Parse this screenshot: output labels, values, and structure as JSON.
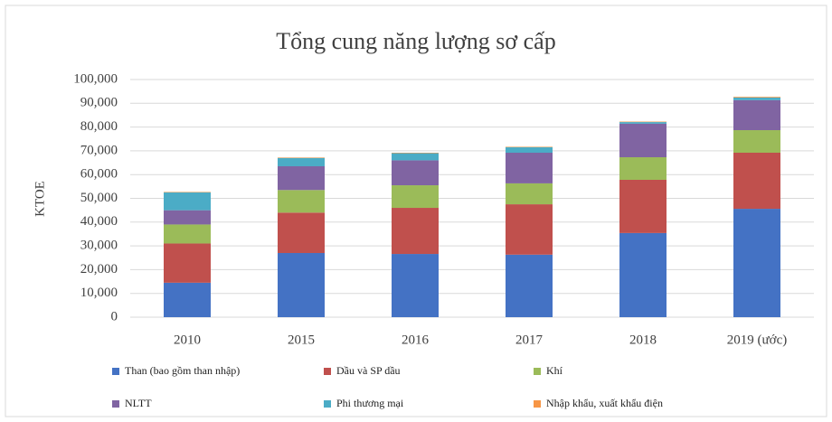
{
  "chart_data": {
    "type": "stacked-bar",
    "title": "Tổng cung năng lượng sơ cấp",
    "y_label": "KTOE",
    "categories": [
      "2010",
      "2015",
      "2016",
      "2017",
      "2018",
      "2019 (ước)"
    ],
    "series": [
      {
        "name": "Than (bao gồm  than nhập)",
        "color": "#4472c4",
        "values": [
          14500,
          27000,
          26600,
          26300,
          35400,
          45600
        ]
      },
      {
        "name": "Dầu và SP dầu",
        "color": "#c0504d",
        "values": [
          16500,
          17000,
          19400,
          21200,
          22400,
          23600
        ]
      },
      {
        "name": "Khí",
        "color": "#9bbb59",
        "values": [
          8000,
          9500,
          9500,
          8800,
          9500,
          9500
        ]
      },
      {
        "name": "NLTT",
        "color": "#8064a2",
        "values": [
          6000,
          10000,
          10500,
          12900,
          14100,
          12600
        ]
      },
      {
        "name": "Phi thương mại",
        "color": "#4bacc6",
        "values": [
          7500,
          3500,
          3000,
          2300,
          700,
          1100
        ]
      },
      {
        "name": "Nhập khẩu, xuất khẩu điện",
        "color": "#f79646",
        "values": [
          200,
          200,
          200,
          200,
          200,
          300
        ]
      }
    ],
    "ylim": [
      0,
      100000
    ],
    "yticks": [
      0,
      {
        "value": 10000,
        "label": "10,000"
      },
      {
        "value": 20000,
        "label": "20,000"
      },
      {
        "value": 30000,
        "label": "30,000"
      },
      {
        "value": 40000,
        "label": "40,000"
      },
      {
        "value": 50000,
        "label": "50,000"
      },
      {
        "value": 60000,
        "label": "60,000"
      },
      {
        "value": 70000,
        "label": "70,000"
      },
      {
        "value": 80000,
        "label": "80,000"
      },
      {
        "value": 90000,
        "label": "90,000"
      },
      {
        "value": 100000,
        "label": "100,000"
      }
    ],
    "grid": true
  }
}
